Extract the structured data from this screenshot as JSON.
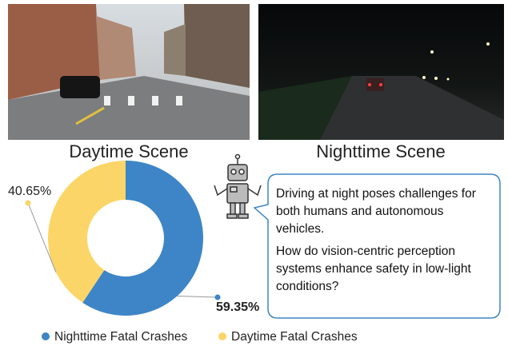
{
  "images": [
    {
      "caption": "Daytime Scene"
    },
    {
      "caption": "Nighttime Scene"
    }
  ],
  "chart_data": {
    "type": "donut",
    "categories": [
      "Nighttime Fatal Crashes",
      "Daytime Fatal Crashes"
    ],
    "values": [
      59.35,
      40.65
    ],
    "value_labels": [
      "59.35%",
      "40.65%"
    ],
    "colors": [
      "#3d85c6",
      "#fbd567"
    ],
    "legend": "bottom"
  },
  "speech": [
    "Driving at night poses challenges for both humans and autonomous vehicles.",
    "How do vision-centric perception systems enhance safety in low-light conditions?"
  ]
}
